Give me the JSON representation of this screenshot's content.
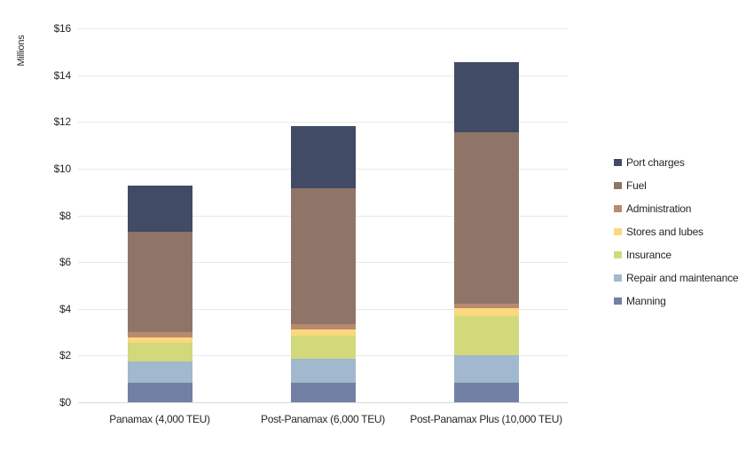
{
  "chart_data": {
    "type": "stacked-bar",
    "title": "",
    "ylabel": "Millions",
    "y_tick_prefix": "$",
    "ylim": [
      0,
      16
    ],
    "y_tick_step": 2,
    "grid": true,
    "legend_position": "right",
    "categories": [
      "Panamax (4,000 TEU)",
      "Post-Panamax (6,000 TEU)",
      "Post-Panamax Plus (10,000 TEU)"
    ],
    "series": [
      {
        "name": "Manning",
        "color": "#7280A5",
        "values": [
          0.85,
          0.85,
          0.85
        ]
      },
      {
        "name": "Repair and maintenance",
        "color": "#A1B8CF",
        "values": [
          0.9,
          1.0,
          1.15
        ]
      },
      {
        "name": "Insurance",
        "color": "#D2D97B",
        "values": [
          0.8,
          1.0,
          1.7
        ]
      },
      {
        "name": "Stores and lubes",
        "color": "#FAD87E",
        "values": [
          0.22,
          0.26,
          0.32
        ]
      },
      {
        "name": "Administration",
        "color": "#B98A70",
        "values": [
          0.22,
          0.25,
          0.2
        ]
      },
      {
        "name": "Fuel",
        "color": "#8F7568",
        "values": [
          4.3,
          5.8,
          7.35
        ]
      },
      {
        "name": "Port charges",
        "color": "#424B66",
        "values": [
          2.0,
          2.65,
          3.0
        ]
      }
    ],
    "totals": [
      9.29,
      11.81,
      14.57
    ],
    "colors": {
      "gridline": "#e9e9e9",
      "baseline": "#d9d9d9",
      "text": "#262626"
    }
  }
}
